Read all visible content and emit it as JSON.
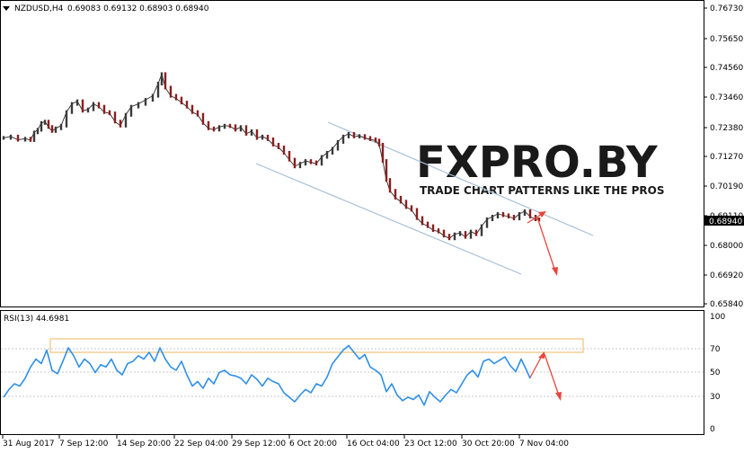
{
  "header": {
    "symbol": "NZDUSD,H4",
    "ohlc": "0.69083 0.69132 0.68903 0.68940",
    "menu_icon": "triangle-down-icon"
  },
  "watermark": {
    "logo": "FXPRO.BY",
    "tagline": "TRADE CHART PATTERNS LIKE THE PROS",
    "colors": {
      "text": "#1a1a1a",
      "accent": "#d6302c"
    }
  },
  "price_axis": {
    "ticks": [
      "0.76730",
      "0.75650",
      "0.74560",
      "0.73460",
      "0.72380",
      "0.71270",
      "0.70190",
      "0.69110",
      "0.68000",
      "0.66920",
      "0.65840"
    ],
    "current_price": "0.68940"
  },
  "rsi_panel": {
    "title": "RSI(13) 44.6981",
    "ticks": [
      "100",
      "70",
      "50",
      "30",
      "0"
    ]
  },
  "time_axis": {
    "labels": [
      "31 Aug 2017",
      "7 Sep 12:00",
      "14 Sep 20:00",
      "22 Sep 04:00",
      "29 Sep 12:00",
      "6 Oct 20:00",
      "16 Oct 04:00",
      "23 Oct 12:00",
      "30 Oct 20:00",
      "7 Nov 04:00"
    ]
  },
  "chart_data": [
    {
      "type": "line",
      "name": "price",
      "ylim": [
        0.6584,
        0.7673
      ],
      "x": [
        0,
        8,
        16,
        24,
        30,
        34,
        38,
        42,
        46,
        50,
        54,
        58,
        64,
        70,
        76,
        82,
        88,
        94,
        100,
        106,
        112,
        118,
        124,
        130,
        136,
        142,
        150,
        158,
        166,
        172,
        176,
        180,
        186,
        192,
        198,
        204,
        210,
        216,
        222,
        228,
        234,
        240,
        246,
        252,
        258,
        264,
        270,
        276,
        282,
        288,
        294,
        300,
        306,
        312,
        318,
        324,
        330,
        336,
        342,
        348,
        354,
        360,
        366,
        372,
        378,
        384,
        390,
        396,
        402,
        408,
        414,
        418,
        422,
        426,
        430,
        436,
        442,
        448,
        454,
        460,
        466,
        472,
        478,
        484,
        490,
        496,
        502,
        508,
        514,
        520,
        526,
        532,
        538,
        544,
        550,
        556,
        562,
        568,
        574,
        580,
        586,
        592,
        596
      ],
      "y": [
        0.7195,
        0.72,
        0.7188,
        0.7192,
        0.7187,
        0.7215,
        0.7225,
        0.725,
        0.7255,
        0.7235,
        0.722,
        0.723,
        0.724,
        0.729,
        0.732,
        0.733,
        0.7295,
        0.73,
        0.732,
        0.731,
        0.729,
        0.7285,
        0.7255,
        0.724,
        0.728,
        0.731,
        0.732,
        0.7335,
        0.735,
        0.7395,
        0.743,
        0.738,
        0.735,
        0.734,
        0.7325,
        0.731,
        0.729,
        0.728,
        0.725,
        0.723,
        0.7225,
        0.7235,
        0.724,
        0.7238,
        0.7225,
        0.7235,
        0.721,
        0.722,
        0.7195,
        0.72,
        0.719,
        0.717,
        0.716,
        0.714,
        0.7115,
        0.709,
        0.71,
        0.711,
        0.7105,
        0.71,
        0.7125,
        0.714,
        0.7155,
        0.718,
        0.72,
        0.721,
        0.72,
        0.7202,
        0.7195,
        0.719,
        0.7185,
        0.717,
        0.711,
        0.704,
        0.7,
        0.6975,
        0.696,
        0.694,
        0.693,
        0.69,
        0.688,
        0.687,
        0.6855,
        0.685,
        0.6835,
        0.6825,
        0.684,
        0.6845,
        0.683,
        0.685,
        0.684,
        0.687,
        0.6895,
        0.6905,
        0.6915,
        0.691,
        0.6905,
        0.6898,
        0.6915,
        0.6925,
        0.6905,
        0.6895,
        0.6894
      ]
    },
    {
      "type": "line",
      "name": "RSI(13)",
      "ylim": [
        0,
        100
      ],
      "x": [
        0,
        6,
        12,
        18,
        24,
        30,
        36,
        42,
        48,
        54,
        60,
        66,
        72,
        78,
        84,
        90,
        96,
        102,
        108,
        114,
        120,
        126,
        132,
        138,
        144,
        150,
        156,
        162,
        168,
        174,
        180,
        186,
        192,
        198,
        204,
        210,
        216,
        222,
        228,
        234,
        240,
        246,
        252,
        258,
        264,
        270,
        276,
        282,
        288,
        294,
        300,
        306,
        312,
        318,
        324,
        330,
        336,
        342,
        348,
        354,
        360,
        366,
        372,
        378,
        384,
        390,
        396,
        402,
        408,
        414,
        420,
        426,
        432,
        438,
        444,
        450,
        456,
        462,
        468,
        474,
        480,
        486,
        492,
        498,
        504,
        510,
        516,
        522,
        528,
        534,
        540,
        546,
        552,
        558,
        564,
        570,
        576,
        582,
        586
      ],
      "y": [
        28,
        35,
        40,
        38,
        45,
        55,
        62,
        58,
        70,
        52,
        49,
        60,
        72,
        65,
        55,
        62,
        58,
        50,
        57,
        55,
        62,
        52,
        48,
        58,
        60,
        65,
        62,
        68,
        60,
        72,
        62,
        55,
        52,
        60,
        48,
        38,
        42,
        36,
        45,
        40,
        50,
        52,
        48,
        47,
        45,
        40,
        48,
        44,
        38,
        45,
        42,
        40,
        32,
        28,
        24,
        30,
        35,
        32,
        40,
        38,
        46,
        58,
        64,
        70,
        74,
        68,
        62,
        66,
        55,
        52,
        48,
        33,
        40,
        30,
        25,
        28,
        26,
        30,
        21,
        33,
        28,
        24,
        30,
        35,
        32,
        40,
        48,
        52,
        46,
        60,
        62,
        58,
        61,
        64,
        56,
        51,
        62,
        52,
        44.7
      ]
    }
  ]
}
